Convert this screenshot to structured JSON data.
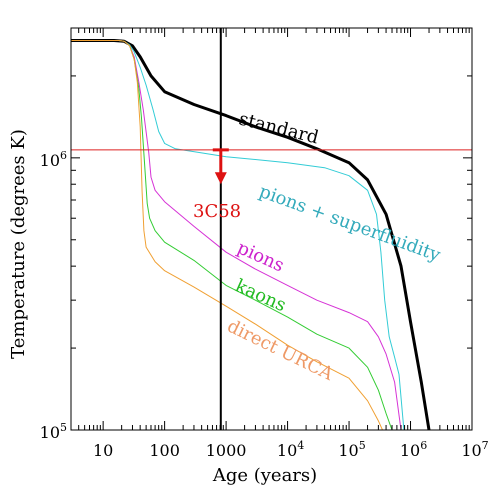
{
  "chart_data": {
    "type": "line",
    "title": "",
    "xlabel": "Age (years)",
    "ylabel": "Temperature (degrees K)",
    "x_scale": "log",
    "y_scale": "log",
    "xlim": [
      3,
      10000000
    ],
    "ylim": [
      100000,
      3000000
    ],
    "x_tick_values": [
      10,
      100,
      1000,
      10000,
      100000,
      1000000,
      10000000
    ],
    "x_tick_labels": [
      {
        "base": "10",
        "exp": ""
      },
      {
        "base": "100",
        "exp": ""
      },
      {
        "base": "1000",
        "exp": ""
      },
      {
        "base": "10",
        "exp": "4"
      },
      {
        "base": "10",
        "exp": "5"
      },
      {
        "base": "10",
        "exp": "6"
      },
      {
        "base": "10",
        "exp": "7"
      }
    ],
    "y_tick_values": [
      100000,
      1000000
    ],
    "y_tick_labels": [
      {
        "base": "10",
        "exp": "5"
      },
      {
        "base": "10",
        "exp": "6"
      }
    ],
    "grid": false,
    "legend": "none",
    "series": [
      {
        "name": "standard",
        "color": "#000000",
        "width": 3,
        "label": "standard",
        "points": [
          [
            3,
            2700000
          ],
          [
            15,
            2700000
          ],
          [
            22,
            2680000
          ],
          [
            30,
            2580000
          ],
          [
            40,
            2350000
          ],
          [
            60,
            2000000
          ],
          [
            100,
            1750000
          ],
          [
            300,
            1570000
          ],
          [
            1000,
            1430000
          ],
          [
            3000,
            1300000
          ],
          [
            10000,
            1190000
          ],
          [
            30000,
            1080000
          ],
          [
            100000,
            960000
          ],
          [
            200000,
            830000
          ],
          [
            400000,
            620000
          ],
          [
            700000,
            400000
          ],
          [
            1000000,
            250000
          ],
          [
            1500000,
            150000
          ],
          [
            2000000,
            100000
          ]
        ]
      },
      {
        "name": "pions + superfluidity",
        "color": "#33ccd6",
        "width": 1,
        "label": "pions + superfluidity",
        "points": [
          [
            3,
            2700000
          ],
          [
            18,
            2700000
          ],
          [
            22,
            2680000
          ],
          [
            27,
            2600000
          ],
          [
            32,
            2450000
          ],
          [
            40,
            2150000
          ],
          [
            50,
            1850000
          ],
          [
            65,
            1500000
          ],
          [
            80,
            1250000
          ],
          [
            100,
            1130000
          ],
          [
            150,
            1080000
          ],
          [
            1000,
            1010000
          ],
          [
            10000,
            960000
          ],
          [
            40000,
            920000
          ],
          [
            100000,
            860000
          ],
          [
            200000,
            760000
          ],
          [
            280000,
            620000
          ],
          [
            330000,
            450000
          ],
          [
            380000,
            300000
          ],
          [
            450000,
            220000
          ],
          [
            550000,
            185000
          ],
          [
            650000,
            160000
          ],
          [
            780000,
            100000
          ]
        ]
      },
      {
        "name": "pions",
        "color": "#d633d6",
        "width": 1,
        "label": "pions",
        "points": [
          [
            3,
            2700000
          ],
          [
            18,
            2700000
          ],
          [
            22,
            2680000
          ],
          [
            27,
            2580000
          ],
          [
            32,
            2350000
          ],
          [
            38,
            1900000
          ],
          [
            45,
            1500000
          ],
          [
            55,
            1050000
          ],
          [
            60,
            850000
          ],
          [
            70,
            760000
          ],
          [
            100,
            690000
          ],
          [
            300,
            560000
          ],
          [
            1000,
            450000
          ],
          [
            3000,
            390000
          ],
          [
            10000,
            340000
          ],
          [
            30000,
            300000
          ],
          [
            100000,
            270000
          ],
          [
            200000,
            250000
          ],
          [
            300000,
            220000
          ],
          [
            400000,
            190000
          ],
          [
            550000,
            150000
          ],
          [
            700000,
            100000
          ]
        ]
      },
      {
        "name": "kaons",
        "color": "#33cc33",
        "width": 1,
        "label": "kaons",
        "points": [
          [
            3,
            2700000
          ],
          [
            18,
            2700000
          ],
          [
            22,
            2680000
          ],
          [
            27,
            2580000
          ],
          [
            32,
            2300000
          ],
          [
            38,
            1800000
          ],
          [
            42,
            1400000
          ],
          [
            47,
            960000
          ],
          [
            52,
            680000
          ],
          [
            57,
            600000
          ],
          [
            70,
            540000
          ],
          [
            100,
            490000
          ],
          [
            300,
            420000
          ],
          [
            1000,
            340000
          ],
          [
            3000,
            300000
          ],
          [
            10000,
            260000
          ],
          [
            30000,
            225000
          ],
          [
            100000,
            200000
          ],
          [
            200000,
            170000
          ],
          [
            300000,
            140000
          ],
          [
            400000,
            115000
          ],
          [
            500000,
            100000
          ]
        ]
      },
      {
        "name": "direct URCA",
        "color": "#f0a033",
        "width": 1,
        "label": "direct URCA",
        "points": [
          [
            3,
            2700000
          ],
          [
            18,
            2700000
          ],
          [
            22,
            2680000
          ],
          [
            27,
            2580000
          ],
          [
            32,
            2300000
          ],
          [
            36,
            1900000
          ],
          [
            40,
            1300000
          ],
          [
            43,
            750000
          ],
          [
            46,
            540000
          ],
          [
            50,
            470000
          ],
          [
            70,
            415000
          ],
          [
            100,
            385000
          ],
          [
            300,
            335000
          ],
          [
            1000,
            285000
          ],
          [
            3000,
            245000
          ],
          [
            10000,
            205000
          ],
          [
            30000,
            178000
          ],
          [
            100000,
            155000
          ],
          [
            200000,
            128000
          ],
          [
            300000,
            108000
          ],
          [
            350000,
            100000
          ]
        ]
      }
    ],
    "reference_lines": [
      {
        "orientation": "horizontal",
        "value": 1070000,
        "color": "#dd2222"
      },
      {
        "orientation": "vertical",
        "value": 820,
        "color": "#000000"
      }
    ],
    "annotations": [
      {
        "text": "3C58",
        "color": "#dd1111",
        "x": 820,
        "y": 1070000,
        "arrow_to_y": 800000
      }
    ]
  }
}
